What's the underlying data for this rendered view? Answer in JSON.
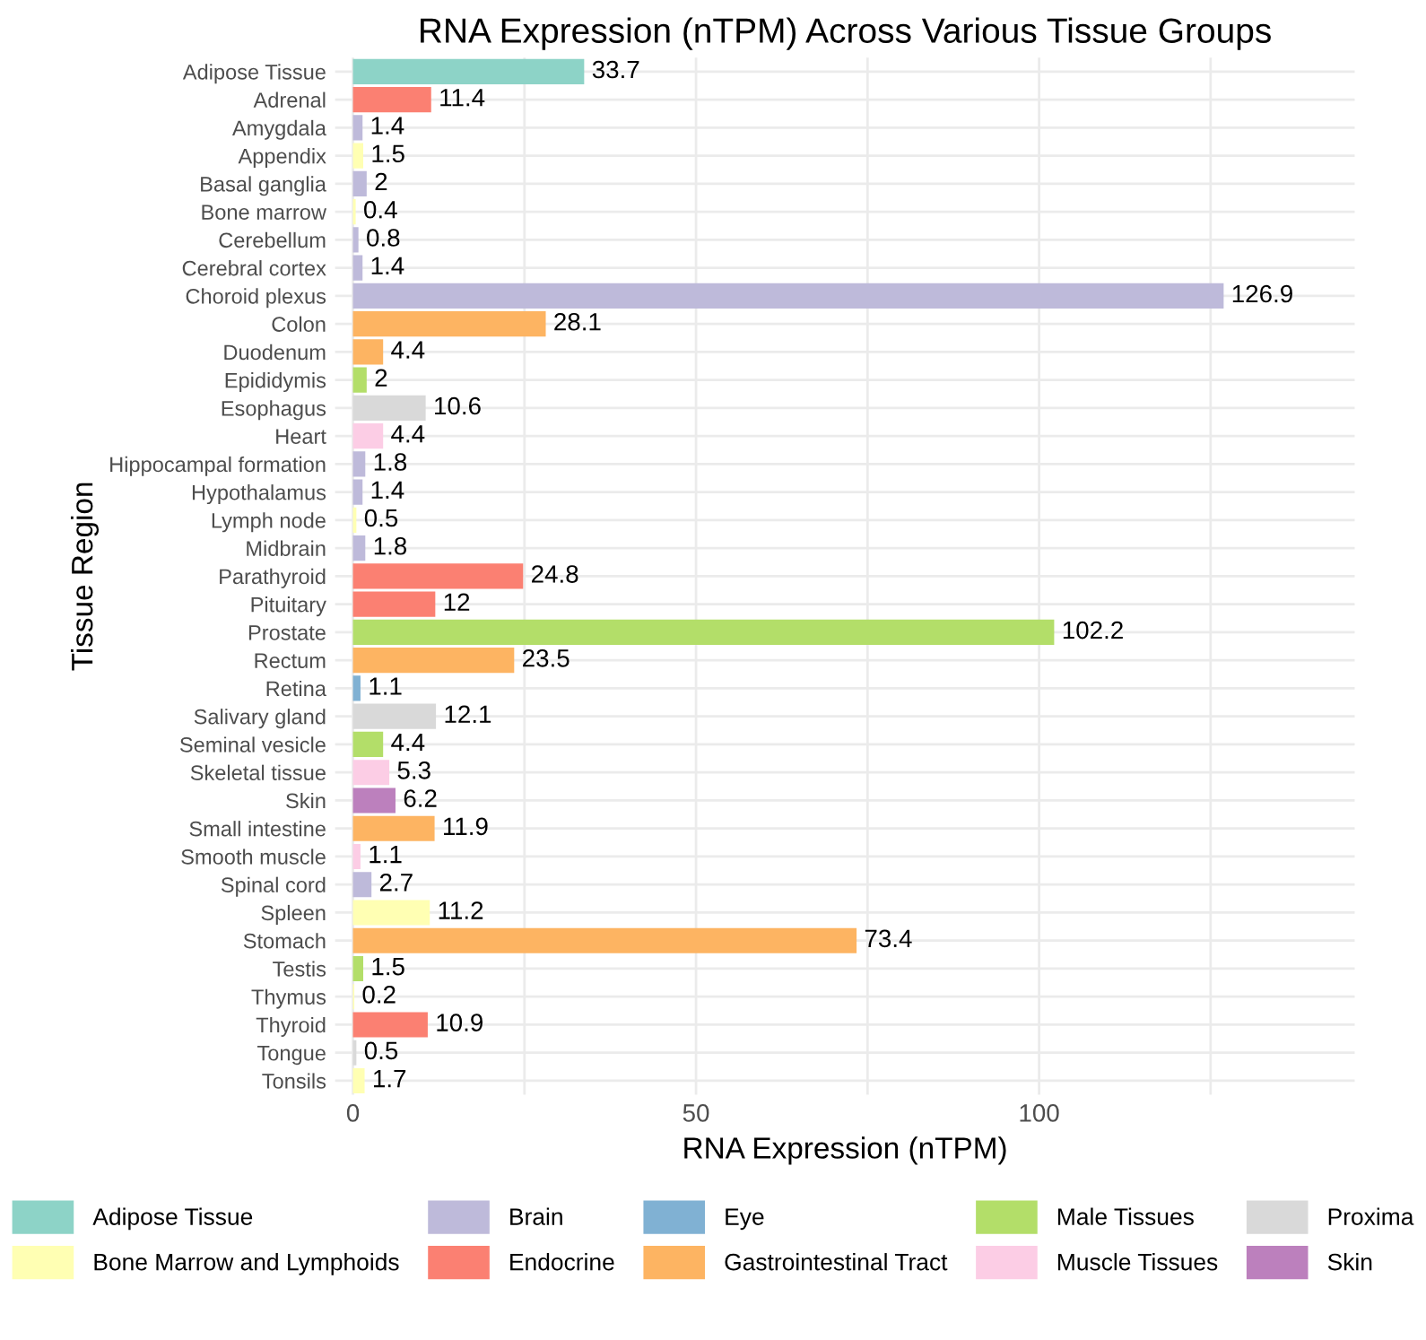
{
  "chart_data": {
    "type": "bar",
    "orientation": "horizontal",
    "data_labels": true,
    "title": "RNA Expression (nTPM) Across Various Tissue Groups",
    "xlabel": "RNA Expression (nTPM)",
    "ylabel": "Tissue Region",
    "categories": [
      "Adipose Tissue",
      "Adrenal",
      "Amygdala",
      "Appendix",
      "Basal ganglia",
      "Bone marrow",
      "Cerebellum",
      "Cerebral cortex",
      "Choroid plexus",
      "Colon",
      "Duodenum",
      "Epididymis",
      "Esophagus",
      "Heart",
      "Hippocampal formation",
      "Hypothalamus",
      "Lymph node",
      "Midbrain",
      "Parathyroid",
      "Pituitary",
      "Prostate",
      "Rectum",
      "Retina",
      "Salivary gland",
      "Seminal vesicle",
      "Skeletal tissue",
      "Skin",
      "Small intestine",
      "Smooth muscle",
      "Spinal cord",
      "Spleen",
      "Stomach",
      "Testis",
      "Thymus",
      "Thyroid",
      "Tongue",
      "Tonsils"
    ],
    "series": [
      {
        "name": "Adipose Tissue",
        "color": "#8dd3c7",
        "values": [
          33.7,
          null,
          null,
          null,
          null,
          null,
          null,
          null,
          null,
          null,
          null,
          null,
          null,
          null,
          null,
          null,
          null,
          null,
          null,
          null,
          null,
          null,
          null,
          null,
          null,
          null,
          null,
          null,
          null,
          null,
          null,
          null,
          null,
          null,
          null,
          null,
          null
        ]
      },
      {
        "name": "Bone Marrow and Lymphoids",
        "color": "#ffffb3",
        "values": [
          null,
          null,
          null,
          1.5,
          null,
          0.4,
          null,
          null,
          null,
          null,
          null,
          null,
          null,
          null,
          null,
          null,
          0.5,
          null,
          null,
          null,
          null,
          null,
          null,
          null,
          null,
          null,
          null,
          null,
          null,
          null,
          11.2,
          null,
          null,
          0.2,
          null,
          null,
          1.7
        ]
      },
      {
        "name": "Brain",
        "color": "#bebada",
        "values": [
          null,
          null,
          1.4,
          null,
          2,
          null,
          0.8,
          1.4,
          126.9,
          null,
          null,
          null,
          null,
          null,
          1.8,
          1.4,
          null,
          1.8,
          null,
          null,
          null,
          null,
          null,
          null,
          null,
          null,
          null,
          null,
          null,
          2.7,
          null,
          null,
          null,
          null,
          null,
          null,
          null
        ]
      },
      {
        "name": "Endocrine",
        "color": "#fb8072",
        "values": [
          null,
          11.4,
          null,
          null,
          null,
          null,
          null,
          null,
          null,
          null,
          null,
          null,
          null,
          null,
          null,
          null,
          null,
          null,
          24.8,
          12,
          null,
          null,
          null,
          null,
          null,
          null,
          null,
          null,
          null,
          null,
          null,
          null,
          null,
          null,
          10.9,
          null,
          null
        ]
      },
      {
        "name": "Eye",
        "color": "#80b1d3",
        "values": [
          null,
          null,
          null,
          null,
          null,
          null,
          null,
          null,
          null,
          null,
          null,
          null,
          null,
          null,
          null,
          null,
          null,
          null,
          null,
          null,
          null,
          null,
          1.1,
          null,
          null,
          null,
          null,
          null,
          null,
          null,
          null,
          null,
          null,
          null,
          null,
          null,
          null
        ]
      },
      {
        "name": "Gastrointestinal Tract",
        "color": "#fdb462",
        "values": [
          null,
          null,
          null,
          null,
          null,
          null,
          null,
          null,
          null,
          28.1,
          4.4,
          null,
          null,
          null,
          null,
          null,
          null,
          null,
          null,
          null,
          null,
          23.5,
          null,
          null,
          null,
          null,
          null,
          11.9,
          null,
          null,
          null,
          73.4,
          null,
          null,
          null,
          null,
          null
        ]
      },
      {
        "name": "Male Tissues",
        "color": "#b3de69",
        "values": [
          null,
          null,
          null,
          null,
          null,
          null,
          null,
          null,
          null,
          null,
          null,
          2,
          null,
          null,
          null,
          null,
          null,
          null,
          null,
          null,
          102.2,
          null,
          null,
          null,
          4.4,
          null,
          null,
          null,
          null,
          null,
          null,
          null,
          1.5,
          null,
          null,
          null,
          null
        ]
      },
      {
        "name": "Muscle Tissues",
        "color": "#fccde5",
        "values": [
          null,
          null,
          null,
          null,
          null,
          null,
          null,
          null,
          null,
          null,
          null,
          null,
          null,
          4.4,
          null,
          null,
          null,
          null,
          null,
          null,
          null,
          null,
          null,
          null,
          null,
          5.3,
          null,
          null,
          1.1,
          null,
          null,
          null,
          null,
          null,
          null,
          null,
          null
        ]
      },
      {
        "name": "Proxima",
        "color": "#d9d9d9",
        "values": [
          null,
          null,
          null,
          null,
          null,
          null,
          null,
          null,
          null,
          null,
          null,
          null,
          10.6,
          null,
          null,
          null,
          null,
          null,
          null,
          null,
          null,
          null,
          null,
          12.1,
          null,
          null,
          null,
          null,
          null,
          null,
          null,
          null,
          null,
          null,
          null,
          0.5,
          null
        ]
      },
      {
        "name": "Skin",
        "color": "#bc80bd",
        "values": [
          null,
          null,
          null,
          null,
          null,
          null,
          null,
          null,
          null,
          null,
          null,
          null,
          null,
          null,
          null,
          null,
          null,
          null,
          null,
          null,
          null,
          null,
          null,
          null,
          null,
          null,
          6.2,
          null,
          null,
          null,
          null,
          null,
          null,
          null,
          null,
          null,
          null
        ]
      }
    ],
    "xlim": [
      -2.6,
      146
    ],
    "xticks": [
      0,
      {
        "value": 25,
        "label": null
      },
      50,
      {
        "value": 75,
        "label": null
      },
      100,
      {
        "value": 125,
        "label": null
      }
    ],
    "grid": true,
    "legend": "bottom"
  }
}
